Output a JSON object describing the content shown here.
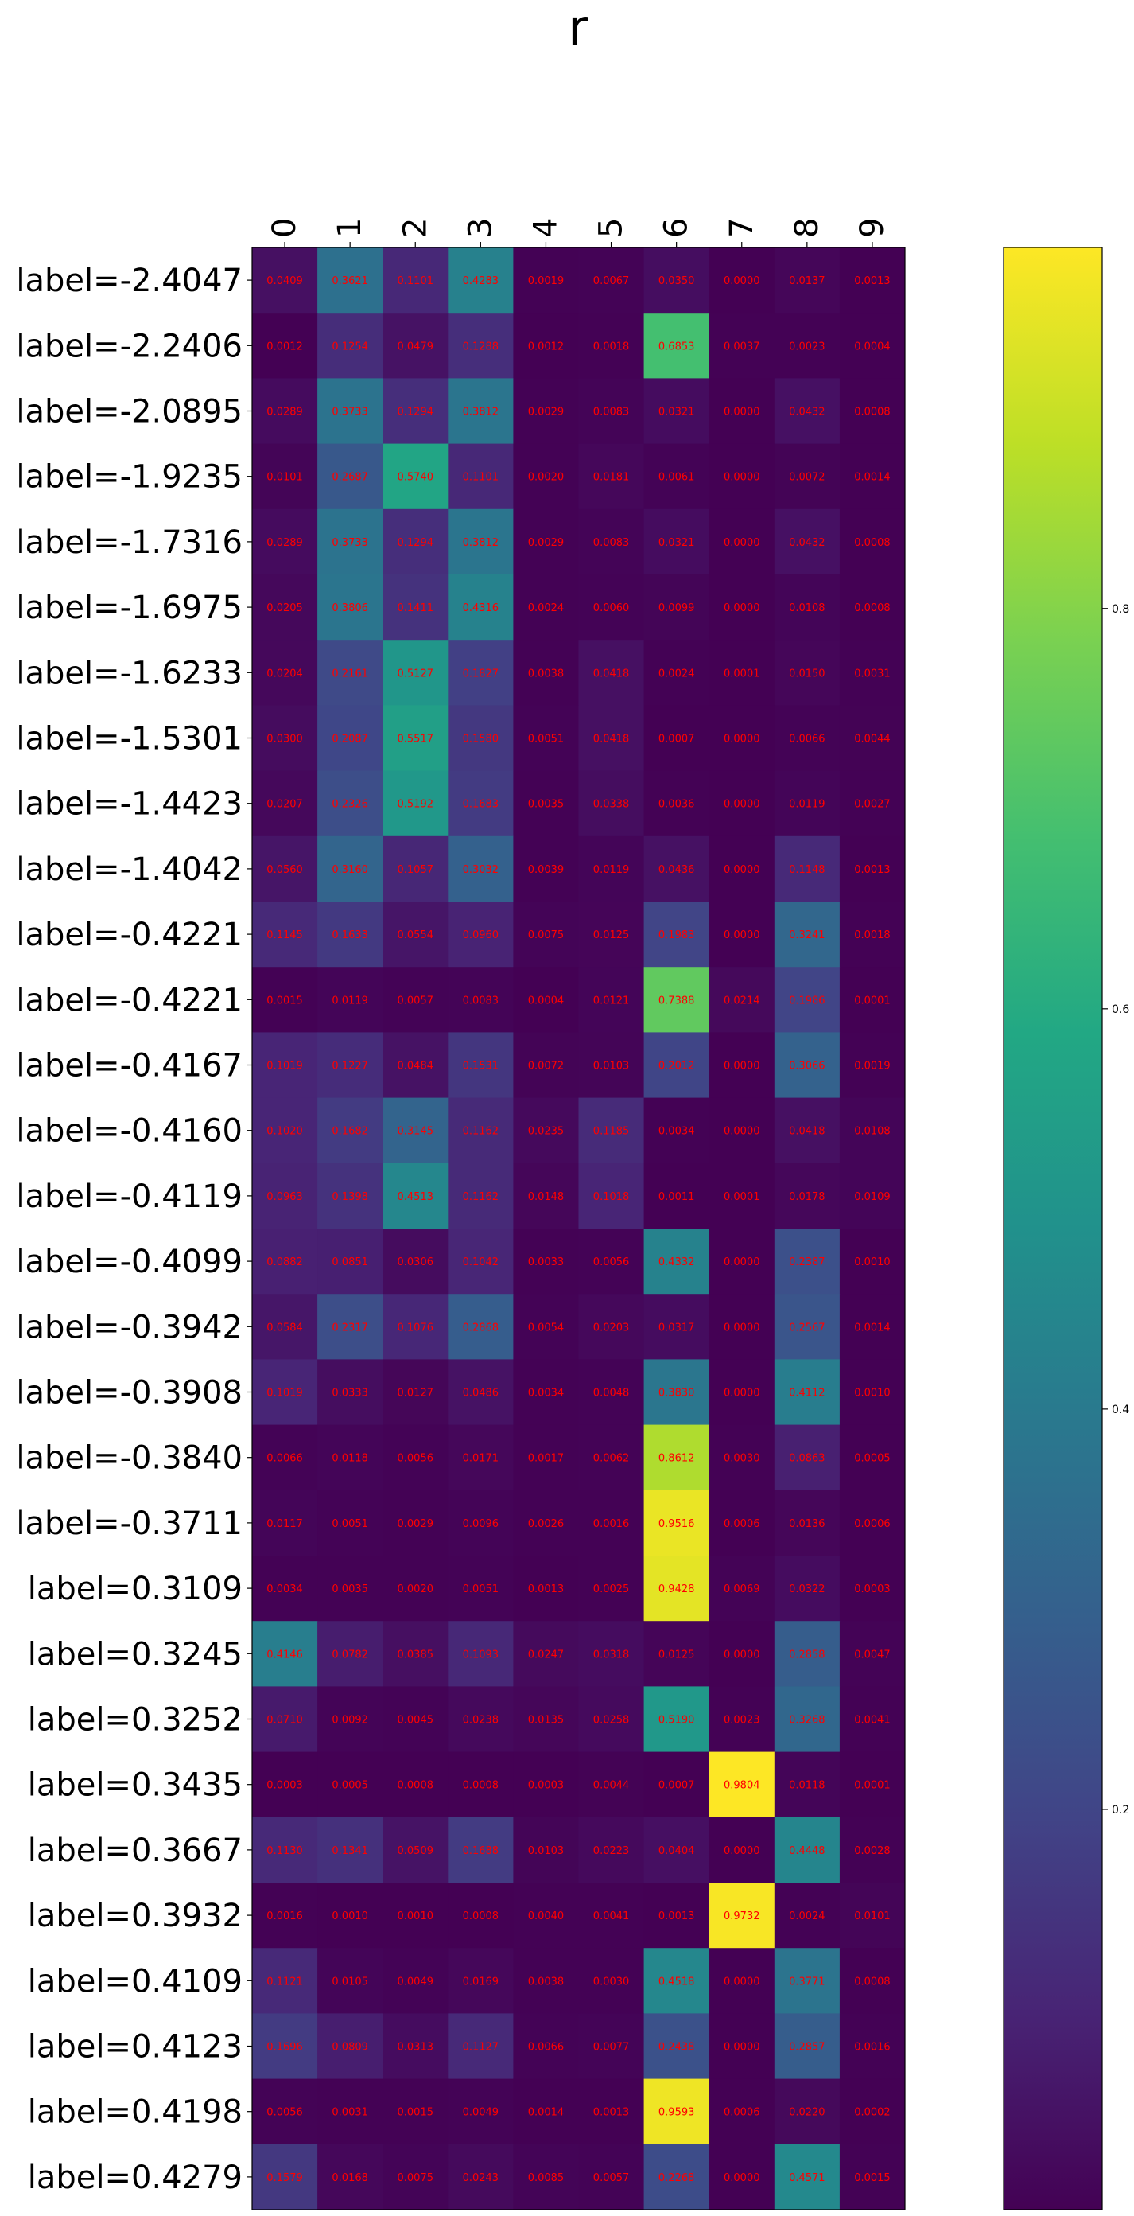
{
  "chart_data": {
    "type": "heatmap",
    "title": "r",
    "x_tick_labels": [
      "0",
      "1",
      "2",
      "3",
      "4",
      "5",
      "6",
      "7",
      "8",
      "9"
    ],
    "y_tick_labels": [
      "label=-2.4047",
      "label=-2.2406",
      "label=-2.0895",
      "label=-1.9235",
      "label=-1.7316",
      "label=-1.6975",
      "label=-1.6233",
      "label=-1.5301",
      "label=-1.4423",
      "label=-1.4042",
      "label=-0.4221",
      "label=-0.4221",
      "label=-0.4167",
      "label=-0.4160",
      "label=-0.4119",
      "label=-0.4099",
      "label=-0.3942",
      "label=-0.3908",
      "label=-0.3840",
      "label=-0.3711",
      "label=0.3109",
      "label=0.3245",
      "label=0.3252",
      "label=0.3435",
      "label=0.3667",
      "label=0.3932",
      "label=0.4109",
      "label=0.4123",
      "label=0.4198",
      "label=0.4279"
    ],
    "values": [
      [
        0.0409,
        0.3621,
        0.1101,
        0.4283,
        0.0019,
        0.0067,
        0.035,
        0.0,
        0.0137,
        0.0013
      ],
      [
        0.0012,
        0.1254,
        0.0479,
        0.1288,
        0.0012,
        0.0018,
        0.6853,
        0.0037,
        0.0023,
        0.0004
      ],
      [
        0.0289,
        0.3733,
        0.1294,
        0.3812,
        0.0029,
        0.0083,
        0.0321,
        0.0,
        0.0432,
        0.0008
      ],
      [
        0.0101,
        0.2687,
        0.574,
        0.1101,
        0.002,
        0.0181,
        0.0061,
        0.0,
        0.0072,
        0.0014
      ],
      [
        0.0289,
        0.3733,
        0.1294,
        0.3812,
        0.0029,
        0.0083,
        0.0321,
        0.0,
        0.0432,
        0.0008
      ],
      [
        0.0205,
        0.3806,
        0.1411,
        0.4316,
        0.0024,
        0.006,
        0.0099,
        0.0,
        0.0108,
        0.0008
      ],
      [
        0.0204,
        0.2161,
        0.5127,
        0.1827,
        0.0038,
        0.0418,
        0.0024,
        0.0001,
        0.015,
        0.0031
      ],
      [
        0.03,
        0.2087,
        0.5517,
        0.158,
        0.0051,
        0.0418,
        0.0007,
        0.0,
        0.0066,
        0.0044
      ],
      [
        0.0207,
        0.2326,
        0.5192,
        0.1683,
        0.0035,
        0.0338,
        0.0036,
        0.0,
        0.0119,
        0.0027
      ],
      [
        0.056,
        0.316,
        0.1057,
        0.3032,
        0.0039,
        0.0119,
        0.0436,
        0.0,
        0.1148,
        0.0013
      ],
      [
        0.1145,
        0.1633,
        0.0554,
        0.096,
        0.0075,
        0.0125,
        0.1983,
        0.0,
        0.3241,
        0.0018
      ],
      [
        0.0015,
        0.0119,
        0.0057,
        0.0083,
        0.0004,
        0.0121,
        0.7388,
        0.0214,
        0.1986,
        0.0001
      ],
      [
        0.1019,
        0.1227,
        0.0484,
        0.1531,
        0.0072,
        0.0103,
        0.2012,
        0.0,
        0.3066,
        0.0019
      ],
      [
        0.102,
        0.1682,
        0.3145,
        0.1162,
        0.0235,
        0.1185,
        0.0034,
        0.0,
        0.0418,
        0.0108
      ],
      [
        0.0963,
        0.1398,
        0.4513,
        0.1162,
        0.0148,
        0.1018,
        0.0011,
        0.0001,
        0.0178,
        0.0109
      ],
      [
        0.0882,
        0.0851,
        0.0306,
        0.1042,
        0.0033,
        0.0056,
        0.4332,
        0.0,
        0.2387,
        0.001
      ],
      [
        0.0584,
        0.2317,
        0.1076,
        0.2868,
        0.0054,
        0.0203,
        0.0317,
        0.0,
        0.2567,
        0.0014
      ],
      [
        0.1019,
        0.0333,
        0.0127,
        0.0486,
        0.0034,
        0.0048,
        0.383,
        0.0,
        0.4112,
        0.001
      ],
      [
        0.0066,
        0.0118,
        0.0056,
        0.0171,
        0.0017,
        0.0062,
        0.8612,
        0.003,
        0.0863,
        0.0005
      ],
      [
        0.0117,
        0.0051,
        0.0029,
        0.0096,
        0.0026,
        0.0016,
        0.9516,
        0.0006,
        0.0136,
        0.0006
      ],
      [
        0.0034,
        0.0035,
        0.002,
        0.0051,
        0.0013,
        0.0025,
        0.9428,
        0.0069,
        0.0322,
        0.0003
      ],
      [
        0.4146,
        0.0782,
        0.0385,
        0.1093,
        0.0247,
        0.0318,
        0.0125,
        0.0,
        0.2858,
        0.0047
      ],
      [
        0.071,
        0.0092,
        0.0045,
        0.0238,
        0.0135,
        0.0258,
        0.519,
        0.0023,
        0.3268,
        0.0041
      ],
      [
        0.0003,
        0.0005,
        0.0008,
        0.0008,
        0.0003,
        0.0044,
        0.0007,
        0.9804,
        0.0118,
        0.0001
      ],
      [
        0.113,
        0.1341,
        0.0509,
        0.1688,
        0.0103,
        0.0223,
        0.0404,
        0.0,
        0.4448,
        0.0028
      ],
      [
        0.0016,
        0.001,
        0.001,
        0.0008,
        0.004,
        0.0041,
        0.0013,
        0.9732,
        0.0024,
        0.0101
      ],
      [
        0.1121,
        0.0105,
        0.0049,
        0.0169,
        0.0038,
        0.003,
        0.4518,
        0.0,
        0.3771,
        0.0008
      ],
      [
        0.1696,
        0.0809,
        0.0313,
        0.1127,
        0.0066,
        0.0077,
        0.2438,
        0.0,
        0.2857,
        0.0016
      ],
      [
        0.0056,
        0.0031,
        0.0015,
        0.0049,
        0.0014,
        0.0013,
        0.9593,
        0.0006,
        0.022,
        0.0002
      ],
      [
        0.1579,
        0.0168,
        0.0075,
        0.0243,
        0.0085,
        0.0057,
        0.2268,
        0.0,
        0.4571,
        0.0015
      ]
    ],
    "value_range": [
      0,
      0.9804
    ],
    "colormap": "viridis",
    "cell_label_color": "#ff0000",
    "colorbar": {
      "ticks": [
        "0.2",
        "0.4",
        "0.6",
        "0.8"
      ],
      "tick_values": [
        0.2,
        0.4,
        0.6,
        0.8
      ]
    },
    "grid": false
  }
}
